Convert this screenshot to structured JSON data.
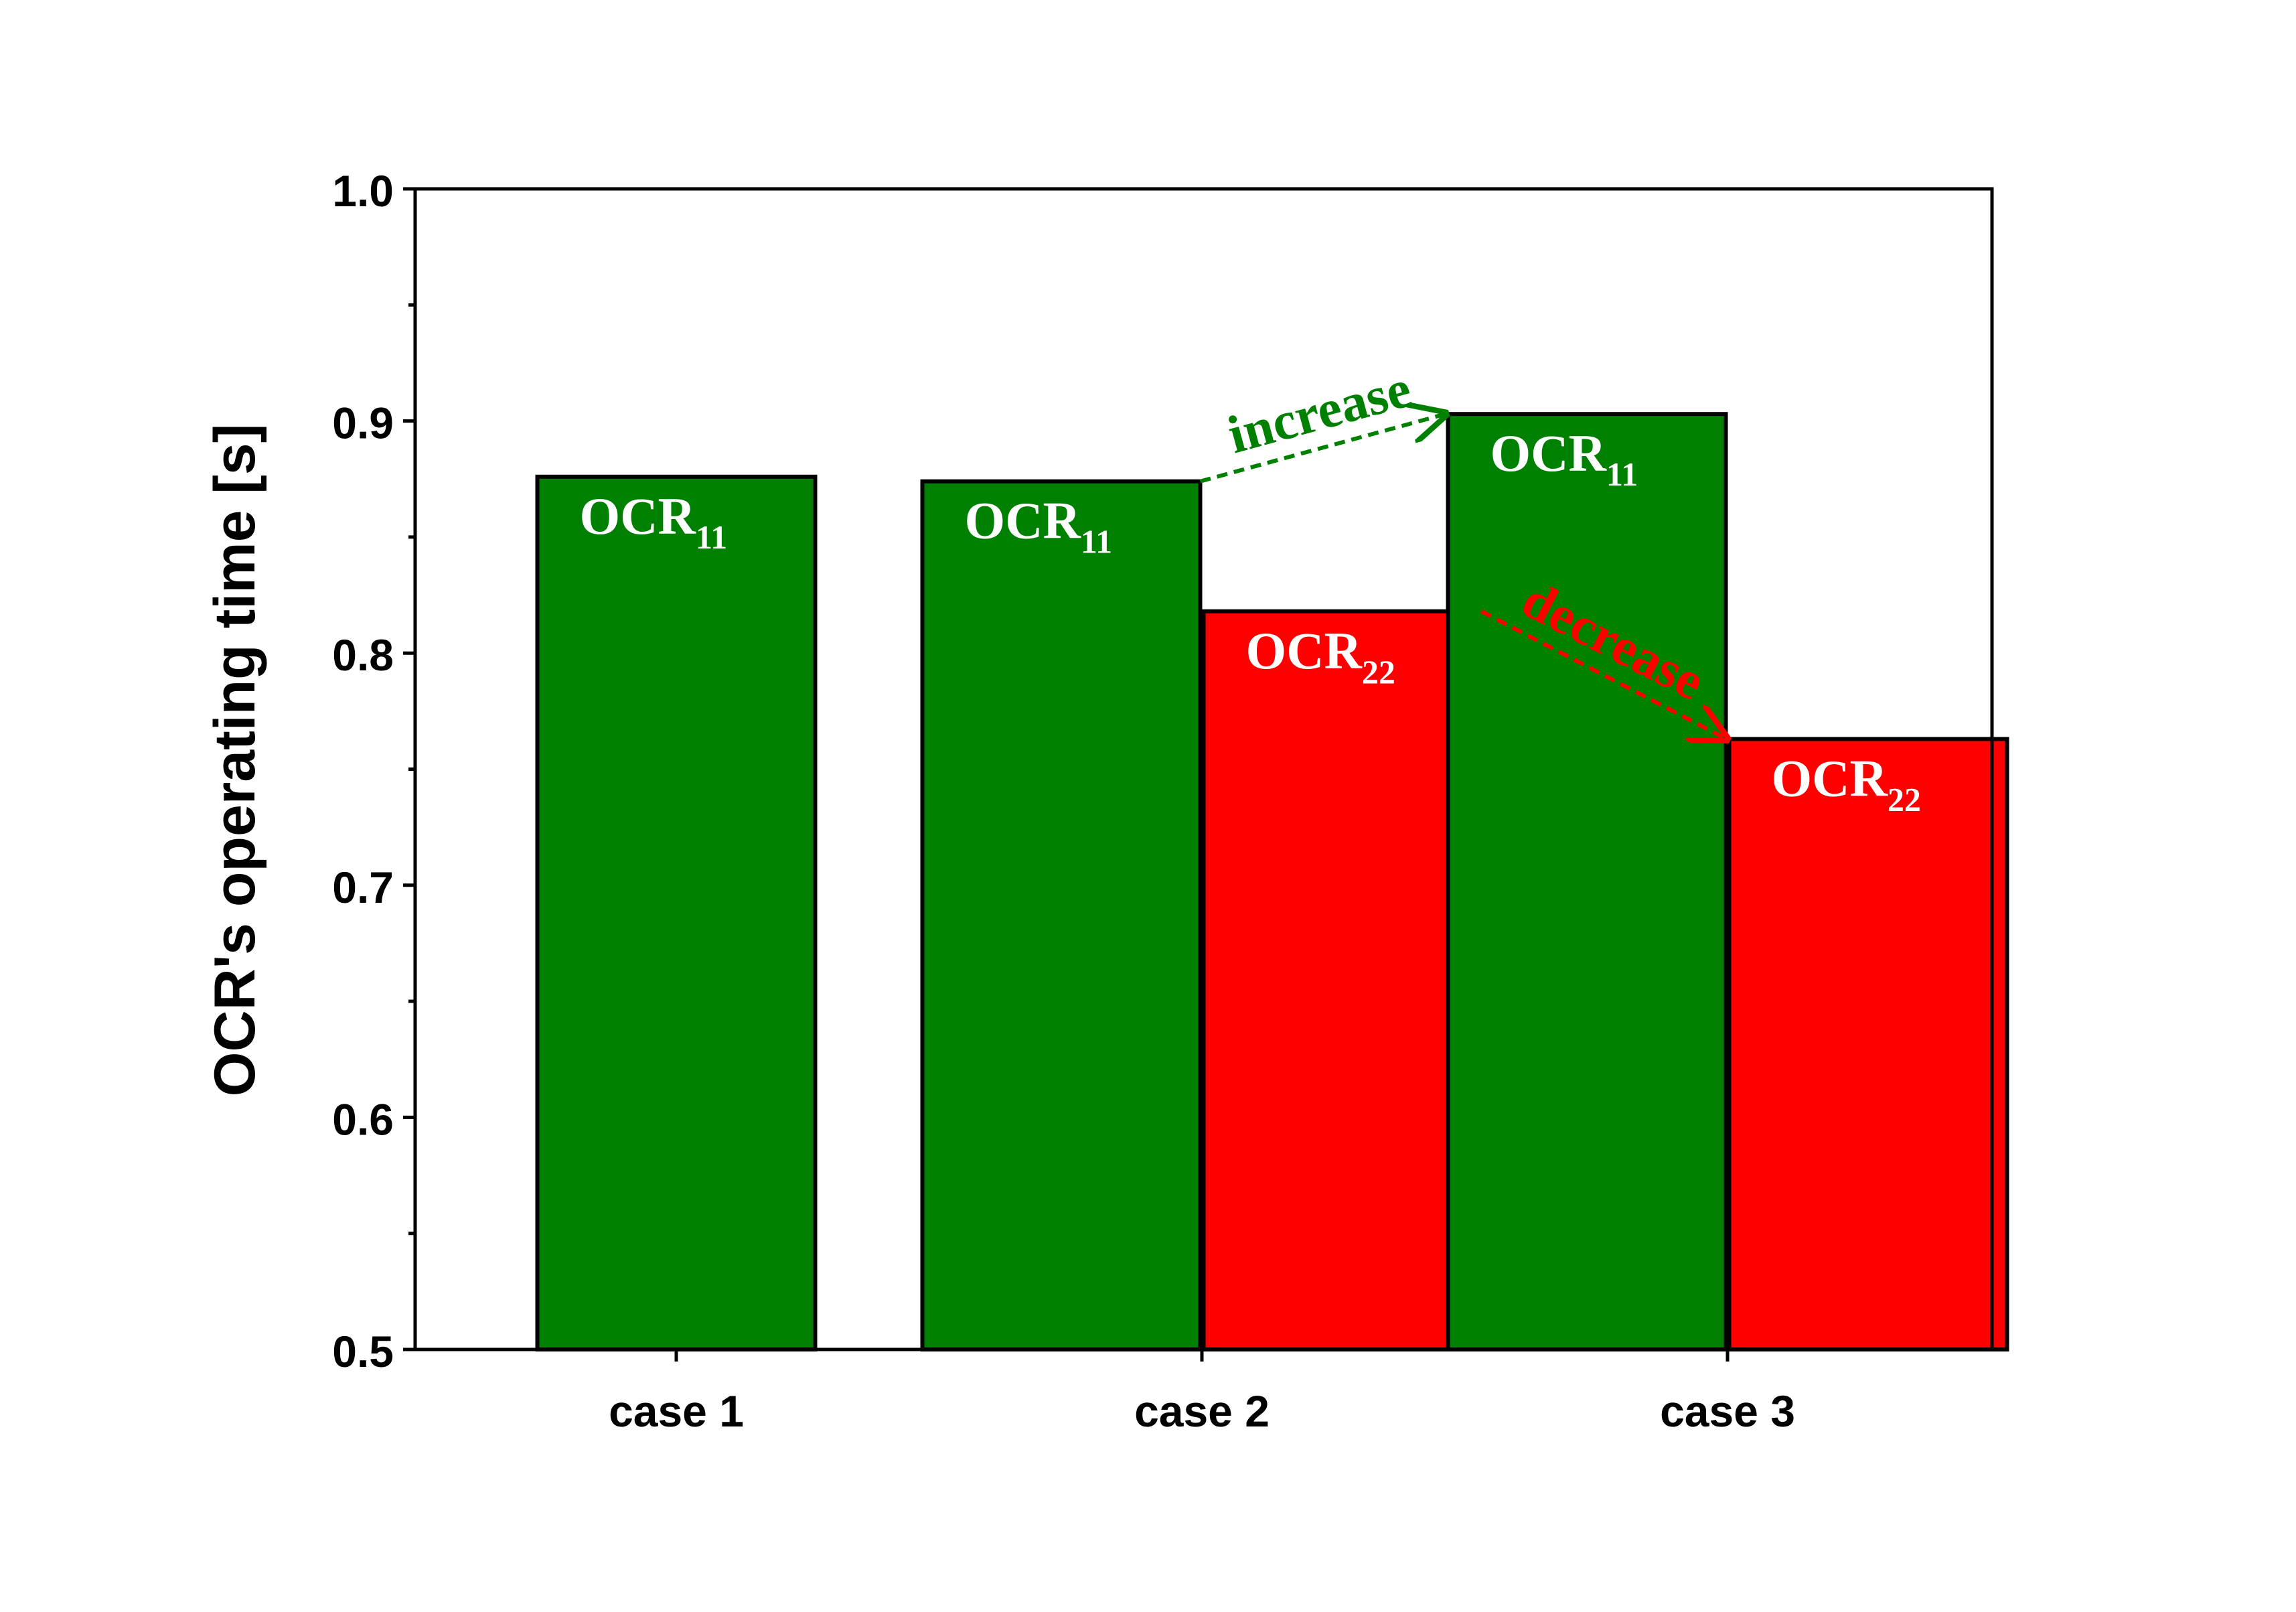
{
  "chart_data": {
    "type": "bar",
    "categories": [
      "case 1",
      "case 2",
      "case 3"
    ],
    "ylabel": "OCR's operating time [s]",
    "ylim": [
      0.5,
      1.0
    ],
    "y_ticks": [
      "0.5",
      "0.6",
      "0.7",
      "0.8",
      "0.9",
      "1.0"
    ],
    "grid": false,
    "series": [
      {
        "name": "OCR11",
        "label_main": "OCR",
        "label_sub": "11",
        "color": "#008000",
        "values": [
          0.876,
          0.874,
          0.903
        ]
      },
      {
        "name": "OCR22",
        "label_main": "OCR",
        "label_sub": "22",
        "color": "#ff0000",
        "values": [
          null,
          0.818,
          0.763
        ]
      }
    ],
    "annotations": [
      {
        "text": "increase",
        "color": "#008000",
        "from": "case 2 OCR11",
        "to": "case 3 OCR11"
      },
      {
        "text": "decrease",
        "color": "#ff0000",
        "from": "case 2 OCR22",
        "to": "case 3 OCR22"
      }
    ]
  }
}
